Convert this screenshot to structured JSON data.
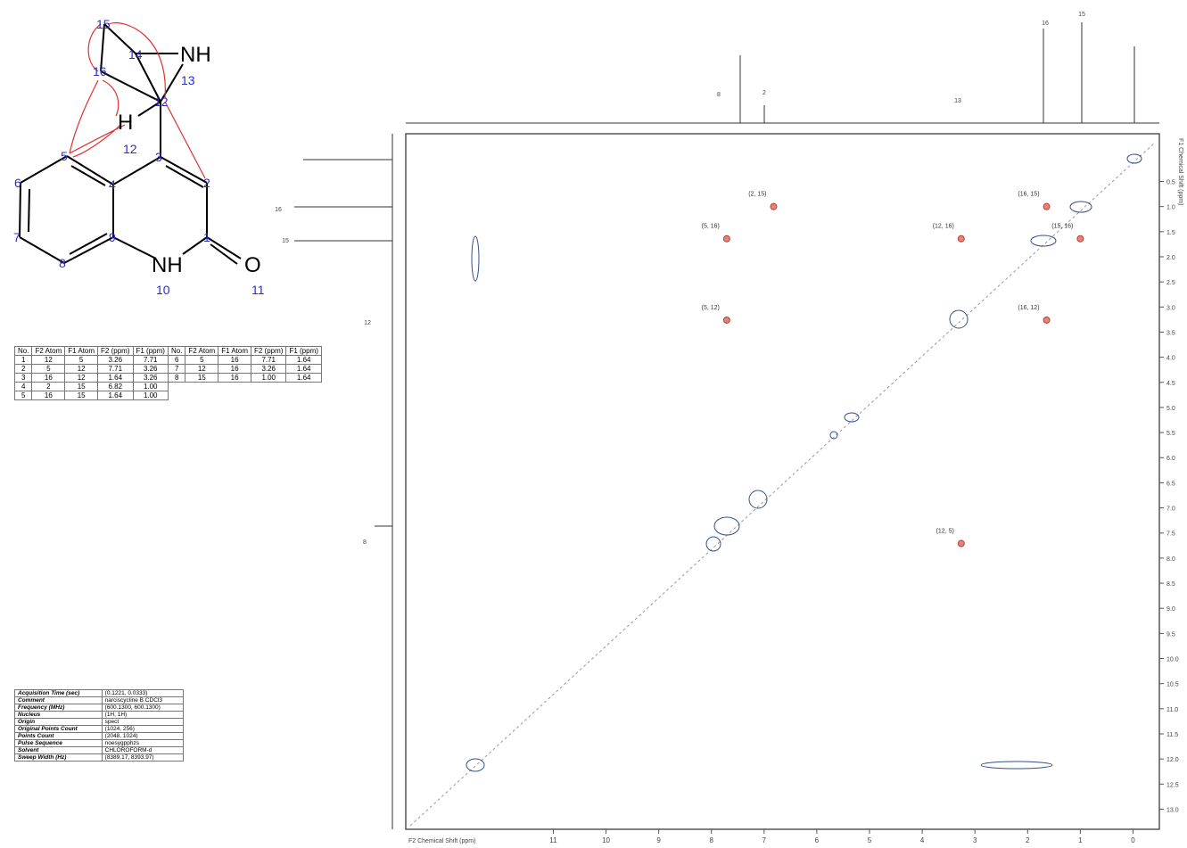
{
  "molecule": {
    "atoms": [
      "15",
      "14",
      "16",
      "12",
      "13",
      "5",
      "3",
      "2",
      "6",
      "4",
      "7",
      "9",
      "1",
      "8",
      "10",
      "11",
      "12"
    ],
    "groups": [
      "NH",
      "H",
      "NH",
      "O"
    ]
  },
  "correlation_table": {
    "header": [
      "No.",
      "F2 Atom",
      "F1 Atom",
      "F2 (ppm)",
      "F1 (ppm)"
    ],
    "rows": [
      [
        "1",
        "12",
        "5",
        "3.26",
        "7.71"
      ],
      [
        "2",
        "5",
        "12",
        "7.71",
        "3.26"
      ],
      [
        "3",
        "16",
        "12",
        "1.64",
        "3.26"
      ],
      [
        "4",
        "2",
        "15",
        "6.82",
        "1.00"
      ],
      [
        "5",
        "16",
        "15",
        "1.64",
        "1.00"
      ],
      [
        "6",
        "5",
        "16",
        "7.71",
        "1.64"
      ],
      [
        "7",
        "12",
        "16",
        "3.26",
        "1.64"
      ],
      [
        "8",
        "15",
        "16",
        "1.00",
        "1.64"
      ]
    ]
  },
  "parameters": [
    [
      "Acquisition Time (sec)",
      "(0.1221, 0.0333)"
    ],
    [
      "Comment",
      "narciscycline B CDCl3"
    ],
    [
      "Frequency (MHz)",
      "(600.1300, 600.1300)"
    ],
    [
      "Nucleus",
      "(1H, 1H)"
    ],
    [
      "Origin",
      "spect"
    ],
    [
      "Original Points Count",
      "(1024, 256)"
    ],
    [
      "Points Count",
      "(2048, 1024)"
    ],
    [
      "Pulse Sequence",
      "noesygpphzs"
    ],
    [
      "Solvent",
      "CHLOROFORM-d"
    ],
    [
      "Sweep Width (Hz)",
      "(8389.17, 8393.97)"
    ]
  ],
  "chart_data": {
    "type": "scatter",
    "x_label": "F2 Chemical Shift (ppm)",
    "y_label": "F1 Chemical Shift (ppm)",
    "xlim": [
      13.8,
      -0.5
    ],
    "ylim": [
      -0.45,
      13.4
    ],
    "xticks": [
      11,
      10,
      9,
      8,
      7,
      6,
      5,
      4,
      3,
      2,
      1,
      0
    ],
    "yticks": [
      {
        "value": 0.5,
        "label": "0.5"
      },
      {
        "value": 1,
        "label": "1.0"
      },
      {
        "value": 1.5,
        "label": "1.5"
      },
      {
        "value": 2,
        "label": "2.0"
      },
      {
        "value": 2.5,
        "label": "2.5"
      },
      {
        "value": 3,
        "label": "3.0"
      },
      {
        "value": 3.5,
        "label": "3.5"
      },
      {
        "value": 4,
        "label": "4.0"
      },
      {
        "value": 4.5,
        "label": "4.5"
      },
      {
        "value": 5,
        "label": "5.0"
      },
      {
        "value": 5.5,
        "label": "5.5"
      },
      {
        "value": 6,
        "label": "6.0"
      },
      {
        "value": 6.5,
        "label": "6.5"
      },
      {
        "value": 7,
        "label": "7.0"
      },
      {
        "value": 7.5,
        "label": "7.5"
      },
      {
        "value": 8,
        "label": "8.0"
      },
      {
        "value": 8.5,
        "label": "8.5"
      },
      {
        "value": 9,
        "label": "9.0"
      },
      {
        "value": 9.5,
        "label": "9.5"
      },
      {
        "value": 10,
        "label": "10.0"
      },
      {
        "value": 10.5,
        "label": "10.5"
      },
      {
        "value": 11,
        "label": "11.0"
      },
      {
        "value": 11.5,
        "label": "11.5"
      },
      {
        "value": 12,
        "label": "12.0"
      },
      {
        "value": 12.5,
        "label": "12.5"
      },
      {
        "value": 13,
        "label": "13.0"
      }
    ],
    "color": "#c0392b",
    "peaks": [
      {
        "label": "(2, 15)",
        "x": 6.82,
        "y": 1.0
      },
      {
        "label": "(16, 15)",
        "x": 1.64,
        "y": 1.0
      },
      {
        "label": "(15, 16)",
        "x": 1.0,
        "y": 1.64
      },
      {
        "label": "(5, 16)",
        "x": 7.71,
        "y": 1.64
      },
      {
        "label": "(12, 16)",
        "x": 3.26,
        "y": 1.64
      },
      {
        "label": "(5, 12)",
        "x": 7.71,
        "y": 3.26
      },
      {
        "label": "(16, 12)",
        "x": 1.64,
        "y": 3.26
      },
      {
        "label": "(12, 5)",
        "x": 3.26,
        "y": 7.71
      }
    ],
    "projection_labels_top": [
      "15",
      "16",
      "8",
      "2",
      "13"
    ],
    "projection_labels_left": [
      "16",
      "15",
      "12",
      "8"
    ]
  }
}
